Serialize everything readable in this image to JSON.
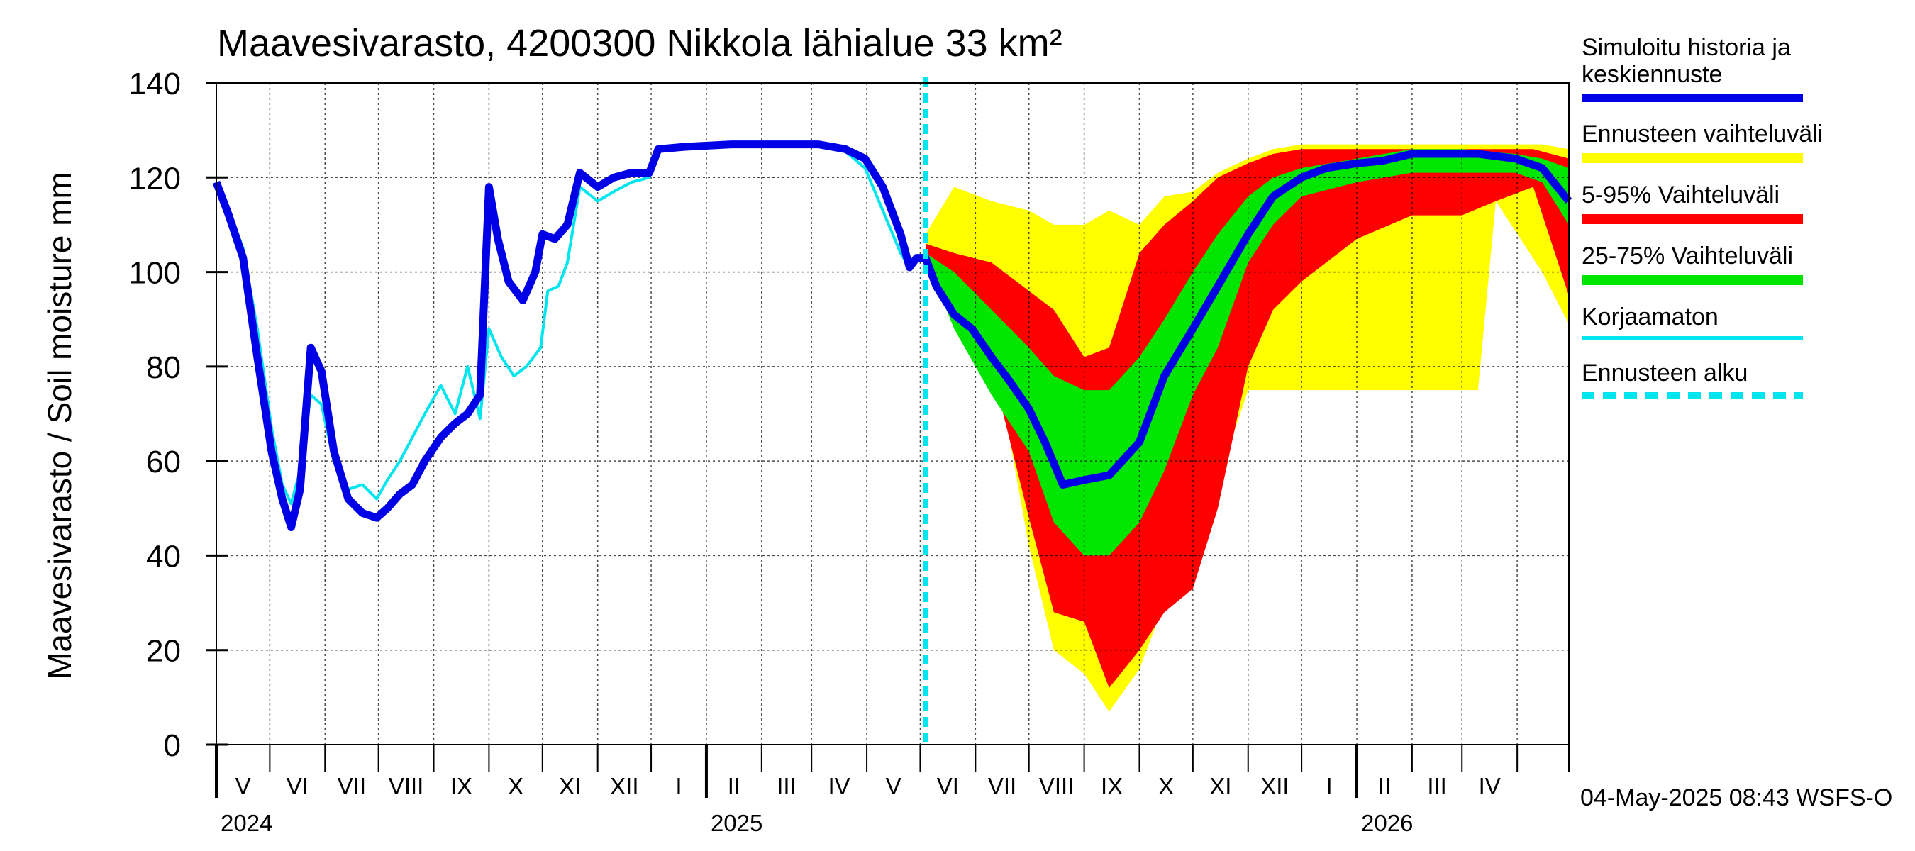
{
  "chart_data": {
    "type": "area",
    "title": "Maavesivarasto, 4200300 Nikkola lähialue 33 km²",
    "ylabel": "Maavesivarasto / Soil moisture   mm",
    "ylim": [
      0,
      140
    ],
    "yticks": [
      "0",
      "20",
      "40",
      "60",
      "80",
      "100",
      "120",
      "140"
    ],
    "ytick_values": [
      0,
      20,
      40,
      60,
      80,
      100,
      120,
      140
    ],
    "xlim": [
      "2024-04-01",
      "2026-04-30"
    ],
    "month_labels": [
      "V",
      "VI",
      "VII",
      "VIII",
      "IX",
      "X",
      "XI",
      "XII",
      "I",
      "II",
      "III",
      "IV",
      "V",
      "VI",
      "VII",
      "VIII",
      "IX",
      "X",
      "XI",
      "XII",
      "I",
      "II",
      "III",
      "IV"
    ],
    "year_labels": [
      {
        "label": "2024",
        "date": "2024-04-01"
      },
      {
        "label": "2025",
        "date": "2025-01-01"
      },
      {
        "label": "2026",
        "date": "2026-01-01"
      }
    ],
    "grid": true,
    "legend_position": "right",
    "forecast_start": "2025-05-04",
    "series": [
      {
        "name": "Simuloitu historia ja keskiennuste",
        "color": "#0000e6",
        "points": [
          [
            "2024-04-01",
            119
          ],
          [
            "2024-04-08",
            112
          ],
          [
            "2024-04-16",
            103
          ],
          [
            "2024-04-24",
            82
          ],
          [
            "2024-05-02",
            62
          ],
          [
            "2024-05-08",
            52
          ],
          [
            "2024-05-13",
            46
          ],
          [
            "2024-05-18",
            54
          ],
          [
            "2024-05-24",
            84
          ],
          [
            "2024-05-30",
            79
          ],
          [
            "2024-06-06",
            62
          ],
          [
            "2024-06-14",
            52
          ],
          [
            "2024-06-22",
            49
          ],
          [
            "2024-06-30",
            48
          ],
          [
            "2024-07-06",
            50
          ],
          [
            "2024-07-13",
            53
          ],
          [
            "2024-07-20",
            55
          ],
          [
            "2024-07-27",
            60
          ],
          [
            "2024-08-05",
            65
          ],
          [
            "2024-08-13",
            68
          ],
          [
            "2024-08-20",
            70
          ],
          [
            "2024-08-27",
            74
          ],
          [
            "2024-09-01",
            118
          ],
          [
            "2024-09-06",
            107
          ],
          [
            "2024-09-12",
            98
          ],
          [
            "2024-09-20",
            94
          ],
          [
            "2024-09-27",
            100
          ],
          [
            "2024-10-01",
            108
          ],
          [
            "2024-10-08",
            107
          ],
          [
            "2024-10-15",
            110
          ],
          [
            "2024-10-22",
            121
          ],
          [
            "2024-11-01",
            118
          ],
          [
            "2024-11-10",
            120
          ],
          [
            "2024-11-20",
            121
          ],
          [
            "2024-11-30",
            121
          ],
          [
            "2024-12-05",
            126
          ],
          [
            "2024-12-20",
            126.5
          ],
          [
            "2025-01-15",
            127
          ],
          [
            "2025-02-10",
            127
          ],
          [
            "2025-03-05",
            127
          ],
          [
            "2025-03-20",
            126
          ],
          [
            "2025-03-31",
            124
          ],
          [
            "2025-04-10",
            118
          ],
          [
            "2025-04-20",
            108
          ],
          [
            "2025-04-25",
            101
          ],
          [
            "2025-04-29",
            103
          ],
          [
            "2025-05-04",
            103
          ],
          [
            "2025-05-10",
            97
          ],
          [
            "2025-05-20",
            91
          ],
          [
            "2025-05-30",
            88
          ],
          [
            "2025-06-10",
            82
          ],
          [
            "2025-06-20",
            77
          ],
          [
            "2025-07-01",
            71
          ],
          [
            "2025-07-10",
            64
          ],
          [
            "2025-07-20",
            55
          ],
          [
            "2025-08-01",
            56
          ],
          [
            "2025-08-15",
            57
          ],
          [
            "2025-09-01",
            64
          ],
          [
            "2025-09-15",
            78
          ],
          [
            "2025-10-01",
            88
          ],
          [
            "2025-10-15",
            97
          ],
          [
            "2025-11-01",
            108
          ],
          [
            "2025-11-15",
            116
          ],
          [
            "2025-12-01",
            120
          ],
          [
            "2025-12-15",
            122
          ],
          [
            "2026-01-01",
            123
          ],
          [
            "2026-01-15",
            123.5
          ],
          [
            "2026-02-01",
            125
          ],
          [
            "2026-02-20",
            125
          ],
          [
            "2026-03-10",
            125
          ],
          [
            "2026-03-31",
            124
          ],
          [
            "2026-04-15",
            122
          ],
          [
            "2026-04-30",
            115
          ]
        ]
      },
      {
        "name": "Korjaamaton",
        "color": "#00e5ee",
        "points": [
          [
            "2024-04-01",
            119
          ],
          [
            "2024-04-08",
            113
          ],
          [
            "2024-04-16",
            105
          ],
          [
            "2024-04-24",
            88
          ],
          [
            "2024-05-02",
            67
          ],
          [
            "2024-05-08",
            55
          ],
          [
            "2024-05-13",
            51
          ],
          [
            "2024-05-18",
            58
          ],
          [
            "2024-05-24",
            74
          ],
          [
            "2024-05-30",
            72
          ],
          [
            "2024-06-06",
            60
          ],
          [
            "2024-06-14",
            54
          ],
          [
            "2024-06-22",
            55
          ],
          [
            "2024-06-30",
            52
          ],
          [
            "2024-07-06",
            56
          ],
          [
            "2024-07-13",
            60
          ],
          [
            "2024-07-20",
            65
          ],
          [
            "2024-07-27",
            70
          ],
          [
            "2024-08-05",
            76
          ],
          [
            "2024-08-13",
            70
          ],
          [
            "2024-08-20",
            80
          ],
          [
            "2024-08-27",
            69
          ],
          [
            "2024-09-01",
            88
          ],
          [
            "2024-09-08",
            82
          ],
          [
            "2024-09-15",
            78
          ],
          [
            "2024-09-22",
            80
          ],
          [
            "2024-09-30",
            84
          ],
          [
            "2024-10-04",
            96
          ],
          [
            "2024-10-10",
            97
          ],
          [
            "2024-10-15",
            102
          ],
          [
            "2024-10-22",
            118
          ],
          [
            "2024-11-01",
            115
          ],
          [
            "2024-11-10",
            117
          ],
          [
            "2024-11-20",
            119
          ],
          [
            "2024-11-30",
            120
          ],
          [
            "2024-12-05",
            126
          ],
          [
            "2024-12-20",
            126
          ],
          [
            "2025-01-15",
            126.5
          ],
          [
            "2025-02-10",
            127
          ],
          [
            "2025-03-05",
            127
          ],
          [
            "2025-03-20",
            125.5
          ],
          [
            "2025-03-31",
            122
          ],
          [
            "2025-04-10",
            113
          ],
          [
            "2025-04-20",
            104
          ],
          [
            "2025-04-25",
            101
          ],
          [
            "2025-05-04",
            104
          ]
        ]
      }
    ],
    "bands": [
      {
        "name": "Ennusteen vaihteluväli",
        "color": "#ffff00",
        "points": [
          [
            "2025-05-04",
            103,
            108
          ],
          [
            "2025-05-20",
            102,
            118
          ],
          [
            "2025-06-10",
            86,
            115
          ],
          [
            "2025-07-01",
            42,
            113
          ],
          [
            "2025-07-15",
            20,
            110
          ],
          [
            "2025-08-01",
            15,
            110
          ],
          [
            "2025-08-15",
            7,
            113
          ],
          [
            "2025-09-01",
            16,
            110
          ],
          [
            "2025-09-15",
            30,
            116
          ],
          [
            "2025-10-01",
            42,
            117
          ],
          [
            "2025-10-15",
            56,
            121
          ],
          [
            "2025-11-01",
            75,
            124
          ],
          [
            "2025-11-15",
            75,
            126
          ],
          [
            "2025-12-01",
            75,
            127
          ],
          [
            "2026-01-01",
            75,
            127
          ],
          [
            "2026-02-01",
            75,
            127
          ],
          [
            "2026-03-01",
            75,
            127
          ],
          [
            "2026-03-10",
            75,
            127
          ],
          [
            "2026-03-20",
            115,
            127
          ],
          [
            "2026-04-15",
            100,
            127
          ],
          [
            "2026-04-30",
            89,
            126
          ]
        ]
      },
      {
        "name": "5-95% Vaihteluväli",
        "color": "#ff0000",
        "points": [
          [
            "2025-05-04",
            102,
            106
          ],
          [
            "2025-05-20",
            98,
            104
          ],
          [
            "2025-06-10",
            80,
            102
          ],
          [
            "2025-07-01",
            48,
            96
          ],
          [
            "2025-07-15",
            28,
            92
          ],
          [
            "2025-08-01",
            26,
            82
          ],
          [
            "2025-08-15",
            12,
            84
          ],
          [
            "2025-09-01",
            20,
            104
          ],
          [
            "2025-09-15",
            28,
            110
          ],
          [
            "2025-10-01",
            33,
            115
          ],
          [
            "2025-10-15",
            50,
            120
          ],
          [
            "2025-11-01",
            80,
            123
          ],
          [
            "2025-11-15",
            92,
            125
          ],
          [
            "2025-12-01",
            98,
            126
          ],
          [
            "2026-01-01",
            107,
            126
          ],
          [
            "2026-02-01",
            112,
            126
          ],
          [
            "2026-03-01",
            112,
            126
          ],
          [
            "2026-03-20",
            115,
            126
          ],
          [
            "2026-04-10",
            118,
            126
          ],
          [
            "2026-04-30",
            95,
            124
          ]
        ]
      },
      {
        "name": "25-75% Vaihteluväli",
        "color": "#00e600",
        "points": [
          [
            "2025-05-04",
            103,
            104
          ],
          [
            "2025-05-20",
            88,
            100
          ],
          [
            "2025-06-10",
            74,
            92
          ],
          [
            "2025-07-01",
            62,
            84
          ],
          [
            "2025-07-15",
            47,
            78
          ],
          [
            "2025-08-01",
            40,
            75
          ],
          [
            "2025-08-15",
            40,
            75
          ],
          [
            "2025-09-01",
            47,
            82
          ],
          [
            "2025-09-15",
            58,
            90
          ],
          [
            "2025-10-01",
            74,
            100
          ],
          [
            "2025-10-15",
            84,
            108
          ],
          [
            "2025-11-01",
            102,
            116
          ],
          [
            "2025-11-15",
            110,
            120
          ],
          [
            "2025-12-01",
            116,
            122
          ],
          [
            "2026-01-01",
            119,
            124
          ],
          [
            "2026-02-01",
            121,
            126
          ],
          [
            "2026-03-01",
            121,
            126
          ],
          [
            "2026-03-31",
            121,
            125
          ],
          [
            "2026-04-15",
            119,
            124
          ],
          [
            "2026-04-30",
            110,
            122
          ]
        ]
      }
    ]
  },
  "legend": [
    {
      "label": "Simuloitu historia ja\nkeskiennuste",
      "color": "#0000e6",
      "style": "solid"
    },
    {
      "label": "Ennusteen vaihteluväli",
      "color": "#ffff00",
      "style": "solid"
    },
    {
      "label": "5-95% Vaihteluväli",
      "color": "#ff0000",
      "style": "solid"
    },
    {
      "label": "25-75% Vaihteluväli",
      "color": "#00e600",
      "style": "solid"
    },
    {
      "label": "Korjaamaton",
      "color": "#00e5ee",
      "style": "thin"
    },
    {
      "label": "Ennusteen alku",
      "color": "#00e5ee",
      "style": "dashed"
    }
  ],
  "footer": {
    "timestamp": "04-May-2025 08:43 WSFS-O"
  }
}
